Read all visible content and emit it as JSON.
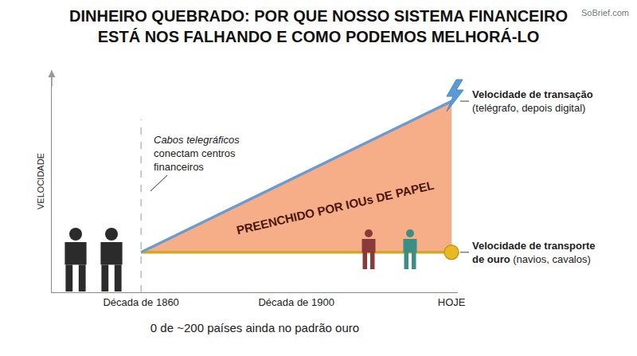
{
  "chart_data": {
    "type": "line",
    "title": "DINHEIRO QUEBRADO: POR QUE NOSSO SISTEMA FINANCEIRO ESTÁ NOS FALHANDO E COMO PODEMOS MELHORÁ-LO",
    "source": "SoBrief.com",
    "x_label": "0 de ~200 países ainda no padrão ouro",
    "y_label": "VELOCIDADE",
    "categories": [
      "Década de 1860",
      "Década de 1900",
      "HOJE"
    ],
    "ylim": [
      0,
      100
    ],
    "tick_labels": "x",
    "grid": false,
    "series": [
      {
        "name": "Velocidade de transporte de ouro",
        "description": "(navios, cavalos)",
        "color": "#d4a62a",
        "values": [
          18,
          18,
          18
        ]
      },
      {
        "name": "Velocidade de transação",
        "description": "(telégrafo, depois digital)",
        "color": "#6b9bd1",
        "values": [
          18,
          52,
          86
        ]
      }
    ],
    "annotations": [
      {
        "text": "Cabos telegráficos conectam centros financeiros",
        "x": "Década de 1860"
      },
      {
        "text": "PREENCHIDO POR IOUs DE PAPEL"
      }
    ]
  }
}
